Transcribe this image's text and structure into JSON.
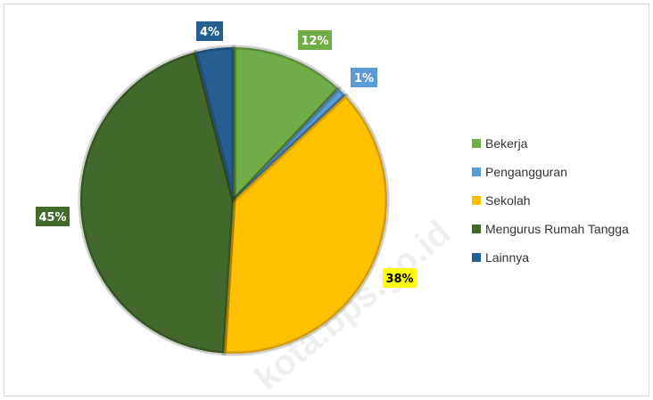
{
  "chart_data": {
    "type": "pie",
    "categories": [
      "Bekerja",
      "Pengangguran",
      "Sekolah",
      "Mengurus Rumah Tangga",
      "Lainnya"
    ],
    "values": [
      12,
      1,
      38,
      45,
      4
    ],
    "labels": [
      "12%",
      "1%",
      "38%",
      "45%",
      "4%"
    ],
    "colors": [
      "#70ad47",
      "#5b9bd5",
      "#ffc000",
      "#43682b",
      "#255e91"
    ],
    "label_fill": [
      "#70ad47",
      "#5b9bd5",
      "#ffff00",
      "#43682b",
      "#255e91"
    ],
    "label_text_color": [
      "#ffffff",
      "#ffffff",
      "#000000",
      "#ffffff",
      "#ffffff"
    ],
    "legend_position": "right",
    "start_angle_deg": 0,
    "direction": "clockwise"
  },
  "watermark": "kota.bps.go.id"
}
